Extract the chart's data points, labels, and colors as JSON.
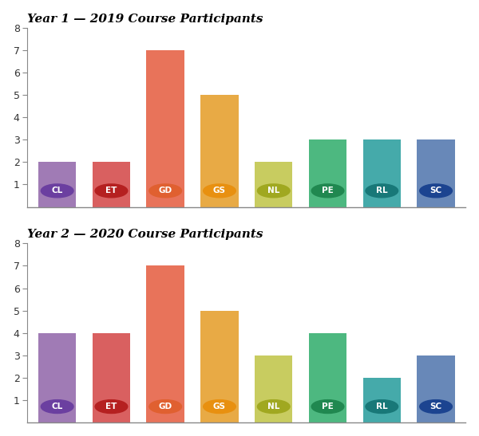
{
  "categories": [
    "CL",
    "ET",
    "GD",
    "GS",
    "NL",
    "PE",
    "RL",
    "SC"
  ],
  "year1_values": [
    2,
    2,
    7,
    5,
    2,
    3,
    3,
    3
  ],
  "year2_values": [
    4,
    4,
    7,
    5,
    3,
    4,
    2,
    3
  ],
  "bar_colors": [
    "#A07BB5",
    "#D96060",
    "#E8735A",
    "#E8AA45",
    "#C8CC60",
    "#4DB880",
    "#45AAAA",
    "#6888B8"
  ],
  "circle_colors": [
    "#6B3FA0",
    "#B52020",
    "#E06030",
    "#E89010",
    "#A0A820",
    "#208850",
    "#187878",
    "#1C4490"
  ],
  "title1": "Year 1 — 2019 Course Participants",
  "title2": "Year 2 — 2020 Course Participants",
  "ylim": [
    0,
    8
  ],
  "yticks": [
    1,
    2,
    3,
    4,
    5,
    6,
    7,
    8
  ],
  "background_color": "#FFFFFF",
  "title_fontsize": 11,
  "bar_width": 0.7
}
